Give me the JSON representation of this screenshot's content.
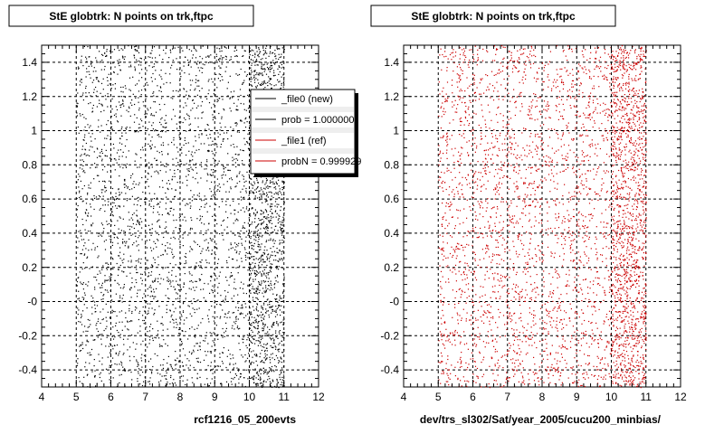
{
  "chart_data": [
    {
      "type": "scatter",
      "title": "StE globtrk: N points on trk,ftpc",
      "xlabel": "rcf1216_05_200evts",
      "ylabel": "",
      "xlim": [
        4,
        12
      ],
      "ylim": [
        -0.5,
        1.5
      ],
      "x_ticks": [
        "4",
        "5",
        "6",
        "7",
        "8",
        "9",
        "10",
        "11",
        "12"
      ],
      "y_ticks": [
        "-0.4",
        "-0.2",
        "-0",
        "0.2",
        "0.4",
        "0.6",
        "0.8",
        "1",
        "1.2",
        "1.4"
      ],
      "grid": true,
      "point_color": "#000000",
      "x_occupied": [
        5,
        11
      ],
      "dense_x_range": [
        10,
        11
      ],
      "legend": {
        "placement": "top-right",
        "entries": [
          {
            "label": "_file0 (new)",
            "color": "#000000"
          },
          {
            "label": "prob = 1.000000",
            "color": "#000000"
          },
          {
            "label": "_file1 (ref)",
            "color": "#cc0000"
          },
          {
            "label": "probN = 0.999929",
            "color": "#cc0000"
          }
        ]
      }
    },
    {
      "type": "scatter",
      "title": "StE globtrk: N points on trk,ftpc",
      "xlabel": "dev/trs_sl302/Sat/year_2005/cucu200_minbias/",
      "ylabel": "",
      "xlim": [
        4,
        12
      ],
      "ylim": [
        -0.5,
        1.5
      ],
      "x_ticks": [
        "4",
        "5",
        "6",
        "7",
        "8",
        "9",
        "10",
        "11",
        "12"
      ],
      "y_ticks": [
        "-0.4",
        "-0.2",
        "-0",
        "0.2",
        "0.4",
        "0.6",
        "0.8",
        "1",
        "1.2",
        "1.4"
      ],
      "grid": true,
      "point_color": "#cc0000",
      "x_occupied": [
        5,
        11
      ],
      "dense_x_range": [
        10,
        11
      ]
    }
  ]
}
